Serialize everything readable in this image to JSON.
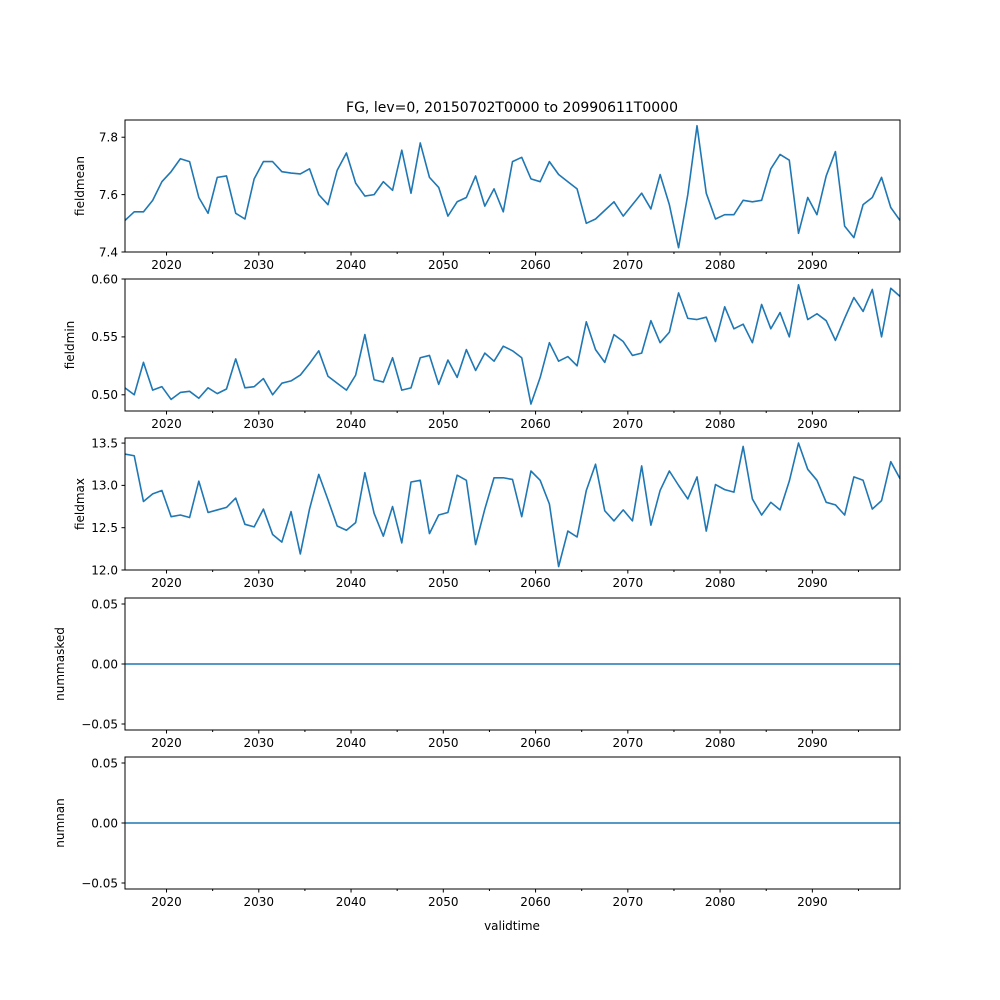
{
  "figure": {
    "title": "FG, lev=0, 20150702T0000 to 20990611T0000",
    "xlabel": "validtime",
    "line_color": "#1f77b4"
  },
  "chart_data": [
    {
      "type": "line",
      "ylabel": "fieldmean",
      "xlim": [
        2015.5,
        2099.5
      ],
      "ylim": [
        7.4,
        7.86
      ],
      "x_ticks": [
        2020,
        2030,
        2040,
        2050,
        2060,
        2070,
        2080,
        2090
      ],
      "y_ticks": [
        {
          "v": 7.4,
          "label": "7.4"
        },
        {
          "v": 7.6,
          "label": "7.6"
        },
        {
          "v": 7.8,
          "label": "7.8"
        }
      ],
      "x_start": 2015.5,
      "x_step": 1,
      "values": [
        7.51,
        7.54,
        7.54,
        7.58,
        7.645,
        7.68,
        7.725,
        7.715,
        7.59,
        7.535,
        7.66,
        7.665,
        7.535,
        7.515,
        7.655,
        7.715,
        7.715,
        7.68,
        7.675,
        7.672,
        7.69,
        7.6,
        7.565,
        7.685,
        7.745,
        7.64,
        7.595,
        7.6,
        7.645,
        7.615,
        7.755,
        7.605,
        7.78,
        7.66,
        7.625,
        7.525,
        7.575,
        7.59,
        7.665,
        7.56,
        7.62,
        7.54,
        7.715,
        7.73,
        7.655,
        7.645,
        7.715,
        7.67,
        7.645,
        7.62,
        7.5,
        7.515,
        7.545,
        7.575,
        7.525,
        7.565,
        7.605,
        7.55,
        7.67,
        7.565,
        7.415,
        7.6,
        7.84,
        7.605,
        7.515,
        7.53,
        7.53,
        7.58,
        7.575,
        7.58,
        7.69,
        7.74,
        7.72,
        7.465,
        7.59,
        7.53,
        7.665,
        7.75,
        7.49,
        7.45,
        7.565,
        7.59,
        7.66,
        7.555,
        7.51
      ]
    },
    {
      "type": "line",
      "ylabel": "fieldmin",
      "xlim": [
        2015.5,
        2099.5
      ],
      "ylim": [
        0.486,
        0.6
      ],
      "x_ticks": [
        2020,
        2030,
        2040,
        2050,
        2060,
        2070,
        2080,
        2090
      ],
      "y_ticks": [
        {
          "v": 0.5,
          "label": "0.50"
        },
        {
          "v": 0.55,
          "label": "0.55"
        },
        {
          "v": 0.6,
          "label": "0.60"
        }
      ],
      "x_start": 2015.5,
      "x_step": 1,
      "values": [
        0.506,
        0.5,
        0.528,
        0.504,
        0.507,
        0.496,
        0.502,
        0.503,
        0.497,
        0.506,
        0.501,
        0.505,
        0.531,
        0.506,
        0.507,
        0.514,
        0.5,
        0.51,
        0.512,
        0.517,
        0.527,
        0.538,
        0.516,
        0.51,
        0.504,
        0.517,
        0.552,
        0.513,
        0.511,
        0.532,
        0.504,
        0.506,
        0.532,
        0.534,
        0.509,
        0.53,
        0.515,
        0.539,
        0.521,
        0.536,
        0.529,
        0.542,
        0.538,
        0.532,
        0.492,
        0.515,
        0.545,
        0.529,
        0.533,
        0.525,
        0.563,
        0.539,
        0.528,
        0.552,
        0.546,
        0.534,
        0.536,
        0.564,
        0.545,
        0.554,
        0.588,
        0.566,
        0.565,
        0.567,
        0.546,
        0.576,
        0.557,
        0.561,
        0.545,
        0.578,
        0.557,
        0.571,
        0.55,
        0.595,
        0.565,
        0.57,
        0.564,
        0.547,
        0.566,
        0.584,
        0.572,
        0.591,
        0.55,
        0.592,
        0.585
      ]
    },
    {
      "type": "line",
      "ylabel": "fieldmax",
      "xlim": [
        2015.5,
        2099.5
      ],
      "ylim": [
        12.0,
        13.56
      ],
      "x_ticks": [
        2020,
        2030,
        2040,
        2050,
        2060,
        2070,
        2080,
        2090
      ],
      "y_ticks": [
        {
          "v": 12.0,
          "label": "12.0"
        },
        {
          "v": 12.5,
          "label": "12.5"
        },
        {
          "v": 13.0,
          "label": "13.0"
        },
        {
          "v": 13.5,
          "label": "13.5"
        }
      ],
      "x_start": 2015.5,
      "x_step": 1,
      "values": [
        13.37,
        13.35,
        12.81,
        12.9,
        12.94,
        12.63,
        12.65,
        12.62,
        13.05,
        12.68,
        12.71,
        12.74,
        12.85,
        12.54,
        12.51,
        12.72,
        12.42,
        12.33,
        12.69,
        12.19,
        12.72,
        13.13,
        12.83,
        12.52,
        12.47,
        12.56,
        13.15,
        12.67,
        12.4,
        12.75,
        12.32,
        13.04,
        13.06,
        12.43,
        12.65,
        12.68,
        13.12,
        13.06,
        12.3,
        12.72,
        13.09,
        13.09,
        13.07,
        12.63,
        13.17,
        13.06,
        12.78,
        12.04,
        12.46,
        12.39,
        12.94,
        13.25,
        12.7,
        12.58,
        12.71,
        12.58,
        13.23,
        12.53,
        12.94,
        13.17,
        13.0,
        12.84,
        13.1,
        12.46,
        13.01,
        12.95,
        12.92,
        13.46,
        12.84,
        12.65,
        12.8,
        12.71,
        13.05,
        13.5,
        13.19,
        13.06,
        12.8,
        12.77,
        12.65,
        13.1,
        13.06,
        12.72,
        12.82,
        13.28,
        13.08
      ]
    },
    {
      "type": "line",
      "ylabel": "nummasked",
      "xlim": [
        2015.5,
        2099.5
      ],
      "ylim": [
        -0.055,
        0.055
      ],
      "x_ticks": [
        2020,
        2030,
        2040,
        2050,
        2060,
        2070,
        2080,
        2090
      ],
      "y_ticks": [
        {
          "v": -0.05,
          "label": "−0.05"
        },
        {
          "v": 0.0,
          "label": "0.00"
        },
        {
          "v": 0.05,
          "label": "0.05"
        }
      ],
      "x_start": 2015.5,
      "x_step": 84,
      "values": [
        0.0,
        0.0
      ]
    },
    {
      "type": "line",
      "ylabel": "numnan",
      "xlim": [
        2015.5,
        2099.5
      ],
      "ylim": [
        -0.055,
        0.055
      ],
      "x_ticks": [
        2020,
        2030,
        2040,
        2050,
        2060,
        2070,
        2080,
        2090
      ],
      "y_ticks": [
        {
          "v": -0.05,
          "label": "−0.05"
        },
        {
          "v": 0.0,
          "label": "0.00"
        },
        {
          "v": 0.05,
          "label": "0.05"
        }
      ],
      "x_start": 2015.5,
      "x_step": 84,
      "values": [
        0.0,
        0.0
      ]
    }
  ]
}
